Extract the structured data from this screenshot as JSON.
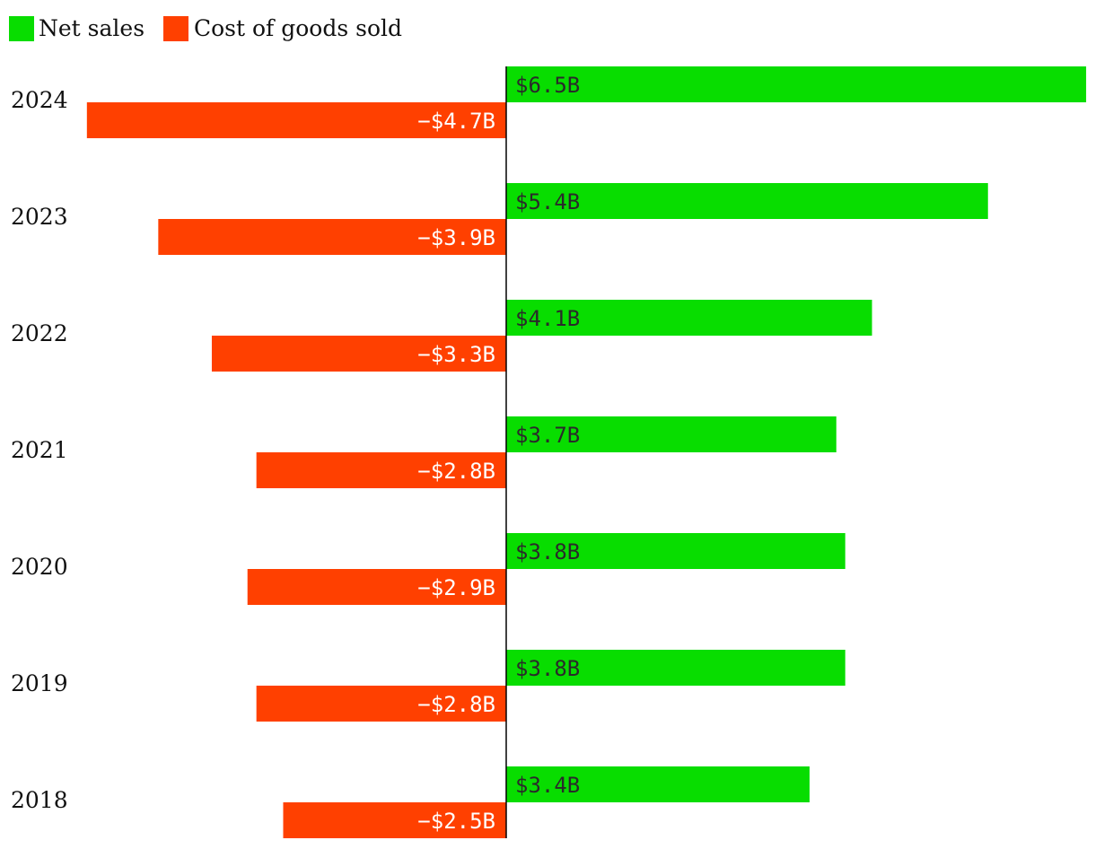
{
  "chart_data": {
    "type": "bar",
    "orientation": "horizontal",
    "categories": [
      "2024",
      "2023",
      "2022",
      "2021",
      "2020",
      "2019",
      "2018"
    ],
    "series": [
      {
        "name": "Net sales",
        "color": "#08dd00",
        "values": [
          6.5,
          5.4,
          4.1,
          3.7,
          3.8,
          3.8,
          3.4
        ],
        "labels": [
          "$6.5B",
          "$5.4B",
          "$4.1B",
          "$3.7B",
          "$3.8B",
          "$3.8B",
          "$3.4B"
        ],
        "label_color": "#2a2a2a"
      },
      {
        "name": "Cost of goods sold",
        "color": "#ff4000",
        "values": [
          -4.7,
          -3.9,
          -3.3,
          -2.8,
          -2.9,
          -2.8,
          -2.5
        ],
        "labels": [
          "−$4.7B",
          "−$3.9B",
          "−$3.3B",
          "−$2.8B",
          "−$2.9B",
          "−$2.8B",
          "−$2.5B"
        ],
        "label_color": "#ffffff"
      }
    ],
    "unit": "$B",
    "xlim": [
      -4.7,
      6.5
    ],
    "legend": "top-left",
    "grid": false,
    "axis_color": "#000000"
  }
}
